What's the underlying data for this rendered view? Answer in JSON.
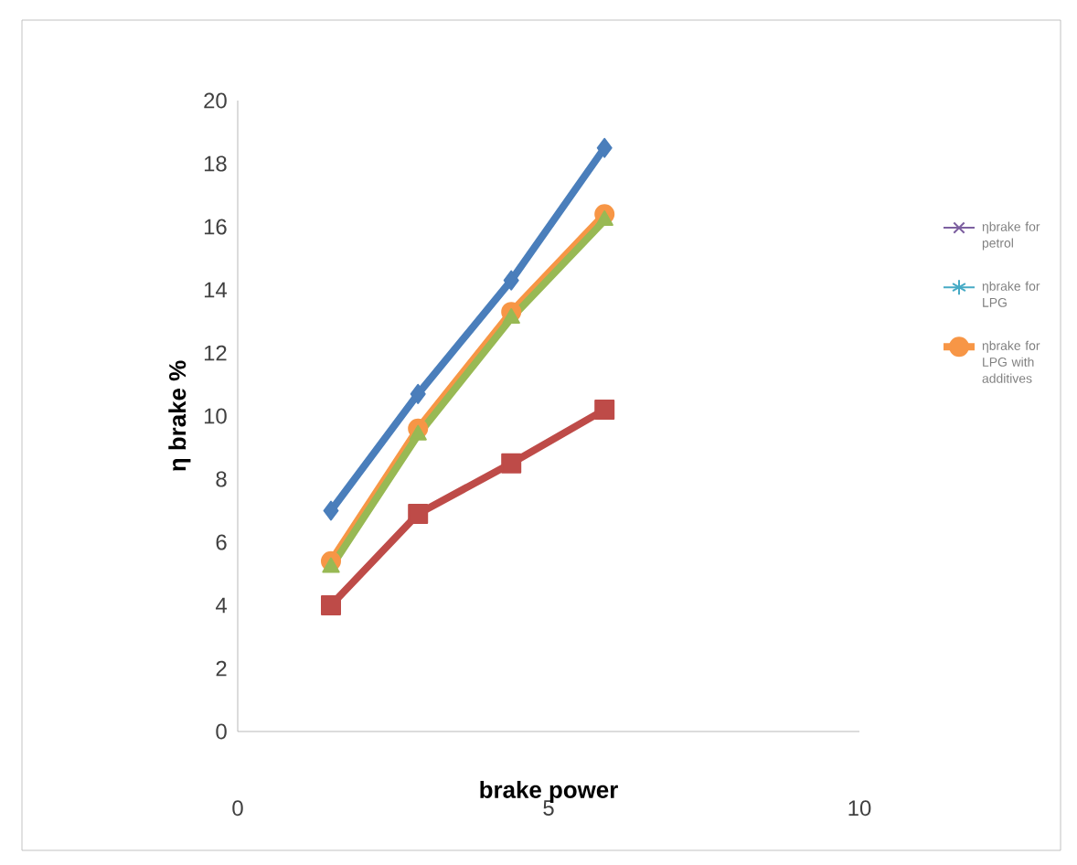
{
  "chart_data": {
    "type": "line",
    "xlabel": "brake power",
    "ylabel": "η brake %",
    "xlim": [
      0,
      10
    ],
    "xticks": [
      0,
      5,
      10
    ],
    "ylim": [
      0,
      20
    ],
    "yticks": [
      0,
      2,
      4,
      6,
      8,
      10,
      12,
      14,
      16,
      18,
      20
    ],
    "grid": false,
    "legend": "right",
    "line_style": "solid",
    "x": [
      1.5,
      2.9,
      4.4,
      5.9
    ],
    "series": [
      {
        "color": "#4a7ebb",
        "marker": "diamond",
        "values": [
          7.0,
          10.7,
          14.3,
          18.5
        ]
      },
      {
        "color": "#be4b48",
        "marker": "square",
        "values": [
          4.0,
          6.9,
          8.5,
          10.2
        ]
      },
      {
        "name": "ηbrake for petrol",
        "color": "#7d60a0",
        "marker": "cross",
        "values": [
          null,
          null,
          null,
          null
        ]
      },
      {
        "name": "ηbrake for LPG",
        "color": "#46aac5",
        "marker": "star",
        "values": [
          null,
          null,
          null,
          null
        ]
      },
      {
        "name": "ηbrake for LPG with additives",
        "color": "#f79646",
        "marker": "circle",
        "values": [
          5.4,
          9.6,
          13.3,
          16.4
        ]
      },
      {
        "color": "#98b954",
        "marker": "triangle",
        "values": [
          5.2,
          9.4,
          13.1,
          16.2
        ]
      }
    ]
  }
}
